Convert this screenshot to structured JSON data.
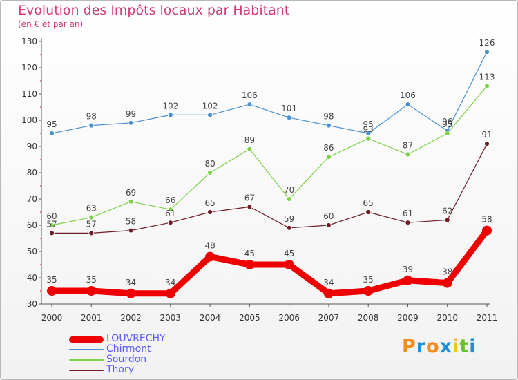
{
  "header": {
    "title": "Evolution des Impôts locaux par Habitant",
    "subtitle": "(en € et par an)"
  },
  "brand": {
    "letters": [
      "P",
      "r",
      "o",
      "x",
      "i",
      "t",
      "i"
    ],
    "colors": [
      "#f28c1e",
      "#1e8fd6",
      "#f28c1e",
      "#1e8fd6",
      "#f2c21e",
      "#6cbf2c",
      "#1e8fd6"
    ]
  },
  "chart_data": {
    "type": "line",
    "title": "Evolution des Impôts locaux par Habitant",
    "subtitle": "(en € et par an)",
    "xlabel": "",
    "ylabel": "",
    "x": [
      "2000",
      "2001",
      "2002",
      "2003",
      "2004",
      "2005",
      "2006",
      "2007",
      "2008",
      "2009",
      "2010",
      "2011"
    ],
    "yticks": [
      30,
      40,
      50,
      60,
      70,
      80,
      90,
      100,
      110,
      120,
      130
    ],
    "ylim": [
      30,
      130
    ],
    "grid": false,
    "legend": "bottom-left",
    "series": [
      {
        "name": "Chirmont",
        "color": "#4a8fd0",
        "values": [
          95,
          98,
          99,
          102,
          102,
          106,
          101,
          98,
          95,
          106,
          96,
          126
        ],
        "labels": [
          "95",
          "98",
          "99",
          "102",
          "102",
          "106",
          "101",
          "98",
          "95",
          "106",
          "96",
          "126"
        ]
      },
      {
        "name": "Sourdon",
        "color": "#7ed048",
        "values": [
          60,
          63,
          69,
          66,
          80,
          89,
          70,
          86,
          93,
          87,
          95,
          113
        ],
        "labels": [
          "60",
          "63",
          "69",
          "66",
          "80",
          "89",
          "70",
          "86",
          "93",
          "87",
          "95",
          "113"
        ]
      },
      {
        "name": "Thory",
        "color": "#6e1e24",
        "values": [
          57,
          57,
          58,
          61,
          65,
          67,
          59,
          60,
          65,
          61,
          62,
          91
        ],
        "labels": [
          "57",
          "57",
          "58",
          "61",
          "65",
          "67",
          "59",
          "60",
          "65",
          "61",
          "62",
          "91"
        ]
      },
      {
        "name": "LOUVRECHY",
        "color": "#ee0000",
        "values": [
          35,
          35,
          34,
          34,
          48,
          45,
          45,
          34,
          35,
          39,
          38,
          58
        ],
        "labels": [
          "35",
          "35",
          "34",
          "34",
          "48",
          "45",
          "45",
          "34",
          "35",
          "39",
          "38",
          "58"
        ],
        "highlight": true
      }
    ]
  },
  "legend": {
    "items": [
      {
        "name": "LOUVRECHY",
        "color": "#ee0000",
        "text_color": "#5a5aff"
      },
      {
        "name": "Chirmont",
        "color": "#4a8fd0",
        "text_color": "#5a5aff"
      },
      {
        "name": "Sourdon",
        "color": "#7ed048",
        "text_color": "#5a5aff"
      },
      {
        "name": "Thory",
        "color": "#6e1e24",
        "text_color": "#5a5aff"
      }
    ]
  }
}
